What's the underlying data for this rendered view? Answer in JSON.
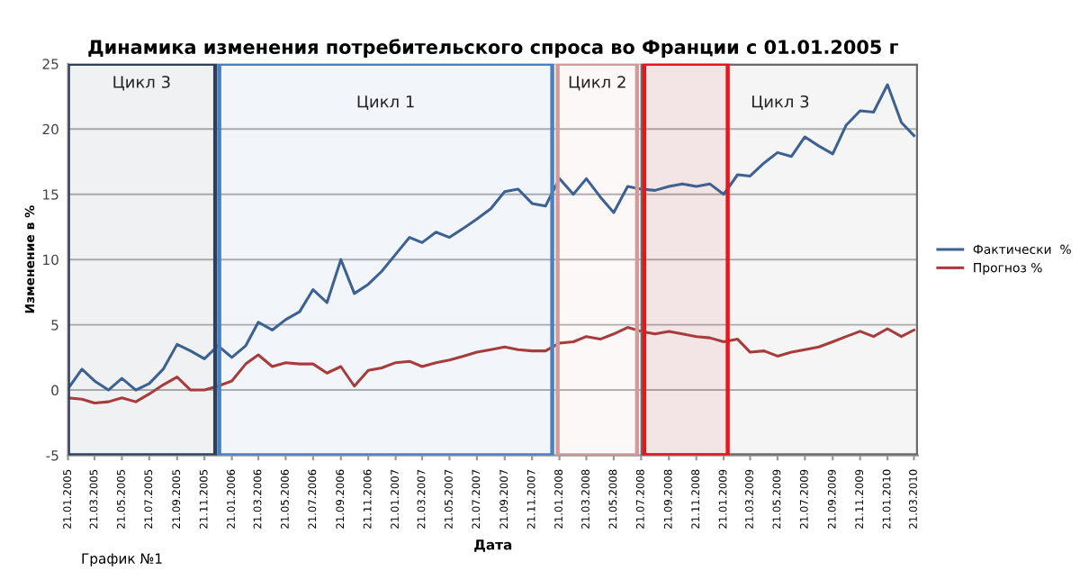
{
  "chart_data": {
    "type": "line",
    "title": "Динамика изменения потребительского спроса во Франции с 01.01.2005 г",
    "xlabel": "Дата",
    "ylabel": "Изменение в %",
    "annotations": [
      "График №1"
    ],
    "x": [
      "2005-01-21",
      "2005-02-21",
      "2005-03-21",
      "2005-04-21",
      "2005-05-21",
      "2005-06-21",
      "2005-07-21",
      "2005-08-21",
      "2005-09-21",
      "2005-10-21",
      "2005-11-21",
      "2005-12-21",
      "2006-01-21",
      "2006-02-21",
      "2006-03-21",
      "2006-04-21",
      "2006-05-21",
      "2006-06-21",
      "2006-07-21",
      "2006-08-21",
      "2006-09-21",
      "2006-10-21",
      "2006-11-21",
      "2006-12-21",
      "2007-01-21",
      "2007-02-21",
      "2007-03-21",
      "2007-04-21",
      "2007-05-21",
      "2007-06-21",
      "2007-07-21",
      "2007-08-21",
      "2007-09-21",
      "2007-10-21",
      "2007-11-21",
      "2007-12-21",
      "2008-01-21",
      "2008-02-21",
      "2008-03-21",
      "2008-04-21",
      "2008-05-21",
      "2008-06-21",
      "2008-07-21",
      "2008-08-21",
      "2008-09-21",
      "2008-10-21",
      "2008-11-21",
      "2008-12-21",
      "2009-01-21",
      "2009-02-21",
      "2009-03-21",
      "2009-04-21",
      "2009-05-21",
      "2009-06-21",
      "2009-07-21",
      "2009-08-21",
      "2009-09-21",
      "2009-10-21",
      "2009-11-21",
      "2009-12-21",
      "2010-01-21",
      "2010-02-21",
      "2010-03-21"
    ],
    "series": [
      {
        "name": "Фактически  %",
        "color": "#3d6190",
        "values": [
          0.1,
          1.6,
          0.7,
          0,
          0.9,
          0,
          0.5,
          1.6,
          3.5,
          3.0,
          2.4,
          3.4,
          2.5,
          3.4,
          5.2,
          4.6,
          5.4,
          6.0,
          7.7,
          6.7,
          10.0,
          7.4,
          8.1,
          9.1,
          10.4,
          11.7,
          11.3,
          12.1,
          11.7,
          12.4,
          13.1,
          13.9,
          15.2,
          15.4,
          14.3,
          14.1,
          16.2,
          15.0,
          16.2,
          14.8,
          13.6,
          15.6,
          15.4,
          15.3,
          15.6,
          15.8,
          15.6,
          15.8,
          15.0,
          16.5,
          16.4,
          17.4,
          18.2,
          17.9,
          19.4,
          18.7,
          18.1,
          20.3,
          21.4,
          21.3,
          23.4,
          20.5,
          19.5
        ]
      },
      {
        "name": "Прогноз %",
        "color": "#a63c3c",
        "values": [
          -0.6,
          -0.7,
          -1.0,
          -0.9,
          -0.6,
          -0.9,
          -0.3,
          0.4,
          1.0,
          0,
          0,
          0.3,
          0.7,
          2.0,
          2.7,
          1.8,
          2.1,
          2.0,
          2.0,
          1.3,
          1.8,
          0.3,
          1.5,
          1.7,
          2.1,
          2.2,
          1.8,
          2.1,
          2.3,
          2.6,
          2.9,
          3.1,
          3.3,
          3.1,
          3.0,
          3.0,
          3.6,
          3.7,
          4.1,
          3.9,
          4.3,
          4.8,
          4.5,
          4.3,
          4.5,
          4.3,
          4.1,
          4.0,
          3.7,
          3.9,
          2.9,
          3.0,
          2.6,
          2.9,
          3.1,
          3.3,
          3.7,
          4.1,
          4.5,
          4.1,
          4.7,
          4.1,
          4.6
        ]
      }
    ],
    "xlim": [
      "2005-01-21",
      "2010-03-30"
    ],
    "xticks": [
      {
        "value": "2005-01-21",
        "label": "21.01.2005"
      },
      {
        "value": "2005-03-21",
        "label": "21.03.2005"
      },
      {
        "value": "2005-05-21",
        "label": "21.05.2005"
      },
      {
        "value": "2005-07-21",
        "label": "21.07.2005"
      },
      {
        "value": "2005-09-21",
        "label": "21.09.2005"
      },
      {
        "value": "2005-11-21",
        "label": "21.11.2005"
      },
      {
        "value": "2006-01-21",
        "label": "21.01.2006"
      },
      {
        "value": "2006-03-21",
        "label": "21.03.2006"
      },
      {
        "value": "2006-05-21",
        "label": "21.05.2006"
      },
      {
        "value": "2006-07-21",
        "label": "21.07.2006"
      },
      {
        "value": "2006-09-21",
        "label": "21.09.2006"
      },
      {
        "value": "2006-11-21",
        "label": "21.11.2006"
      },
      {
        "value": "2007-01-21",
        "label": "21.01.2007"
      },
      {
        "value": "2007-03-21",
        "label": "21.03.2007"
      },
      {
        "value": "2007-05-21",
        "label": "21.05.2007"
      },
      {
        "value": "2007-07-21",
        "label": "21.07.2007"
      },
      {
        "value": "2007-09-21",
        "label": "21.09.2007"
      },
      {
        "value": "2007-11-21",
        "label": "21.11.2007"
      },
      {
        "value": "2008-01-21",
        "label": "21.01.2008"
      },
      {
        "value": "2008-03-21",
        "label": "21.03.2008"
      },
      {
        "value": "2008-05-21",
        "label": "21.05.2008"
      },
      {
        "value": "2008-07-21",
        "label": "21.07.2008"
      },
      {
        "value": "2008-09-21",
        "label": "21.09.2008"
      },
      {
        "value": "2008-11-21",
        "label": "21.11.2008"
      },
      {
        "value": "2009-01-21",
        "label": "21.01.2009"
      },
      {
        "value": "2009-03-21",
        "label": "21.03.2009"
      },
      {
        "value": "2009-05-21",
        "label": "21.05.2009"
      },
      {
        "value": "2009-07-21",
        "label": "21.07.2009"
      },
      {
        "value": "2009-09-21",
        "label": "21.09.2009"
      },
      {
        "value": "2009-11-21",
        "label": "21.11.2009"
      },
      {
        "value": "2010-01-21",
        "label": "21.01.2010"
      },
      {
        "value": "2010-03-21",
        "label": "21.03.2010"
      }
    ],
    "ylim": [
      -5,
      25
    ],
    "yticks": [
      -5,
      0,
      5,
      10,
      15,
      20,
      25
    ],
    "grid": "y",
    "legend": "right",
    "marker": "none",
    "line_style": "solid",
    "bands": [
      {
        "axis": "x",
        "from": "2005-01-21",
        "to": "2005-12-15",
        "label": "Цикл 3",
        "color": "#2e3f5c"
      },
      {
        "axis": "x",
        "from": "2005-12-24",
        "to": "2008-01-05",
        "label": "Цикл 1",
        "color": "#4a7fc1"
      },
      {
        "axis": "x",
        "from": "2008-01-17",
        "to": "2008-07-12",
        "label": "Цикл 2",
        "color": "#d49a9a"
      },
      {
        "axis": "x",
        "from": "2008-07-24",
        "to": "2010-03-30",
        "label": "Цикл 3",
        "color": "#6b6b6b"
      },
      {
        "axis": "x",
        "from": "2008-07-28",
        "to": "2009-01-30",
        "color": "#e8161b"
      }
    ]
  }
}
